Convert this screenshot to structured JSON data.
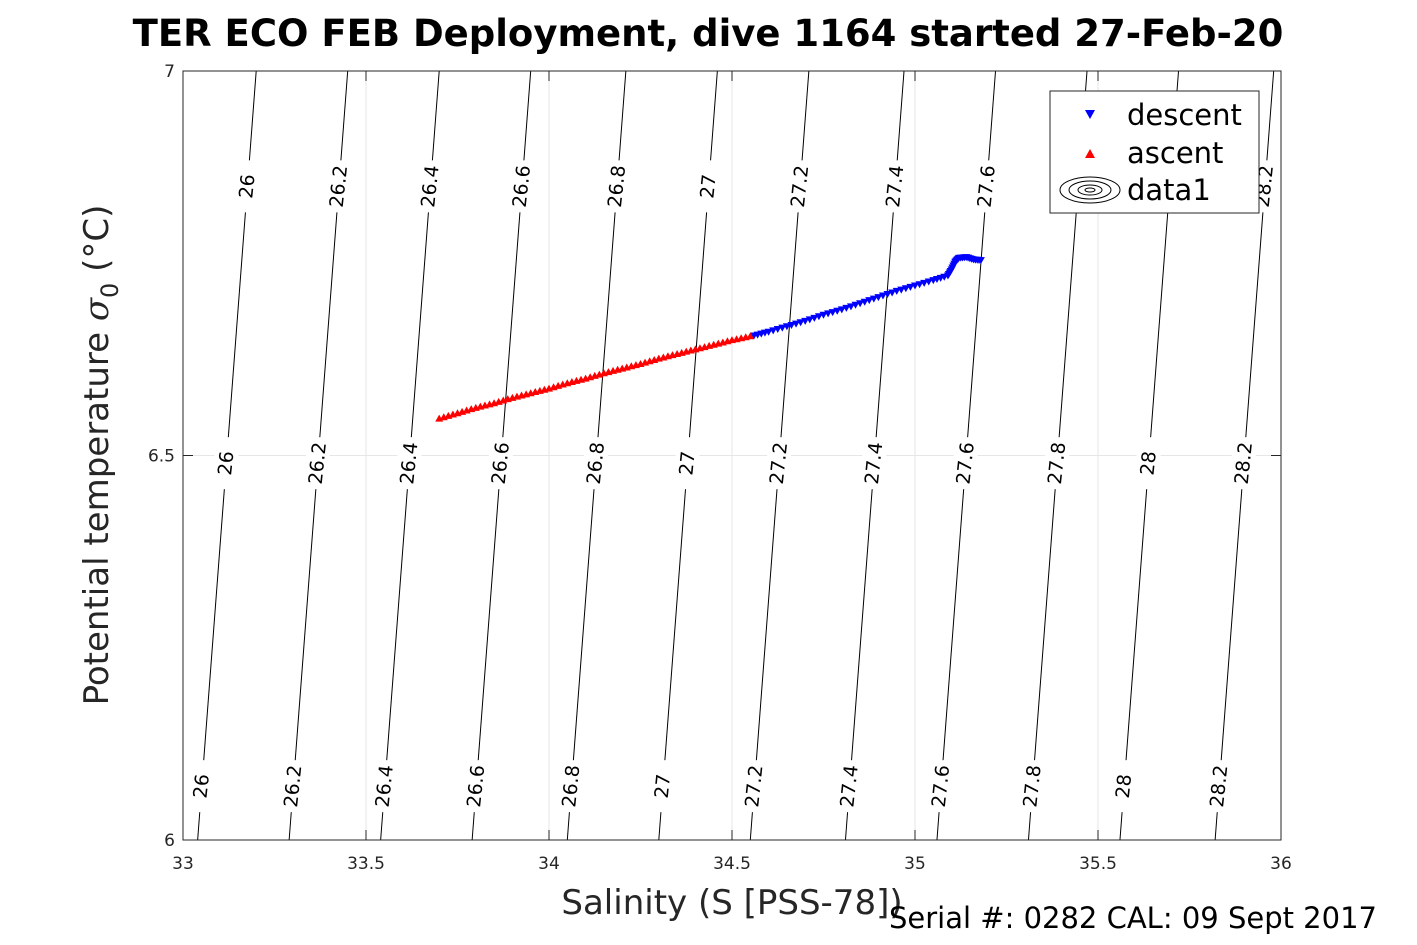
{
  "figure": {
    "title": "TER ECO FEB Deployment, dive 1164 started 27-Feb-20",
    "footnote": "Serial #: 0282  CAL: 09 Sept 2017"
  },
  "chart_data": {
    "type": "scatter",
    "title": "TER ECO FEB Deployment, dive 1164 started 27-Feb-20",
    "xlabel": "Salinity (S [PSS-78])",
    "ylabel_main": "Potential temperature ",
    "ylabel_symbol": "σ",
    "ylabel_sub": "0",
    "ylabel_unit": " (°C)",
    "xlim": [
      33,
      36
    ],
    "ylim": [
      6,
      7
    ],
    "x_ticks": [
      33,
      33.5,
      34,
      34.5,
      35,
      35.5,
      36
    ],
    "x_tick_labels": [
      "33",
      "33.5",
      "34",
      "34.5",
      "35",
      "35.5",
      "36"
    ],
    "y_ticks": [
      6,
      6.5,
      7
    ],
    "y_tick_labels": [
      "6",
      "6.5",
      "7"
    ],
    "grid": true,
    "legend": {
      "position": "top-right",
      "entries": [
        "descent",
        "ascent",
        "data1"
      ]
    },
    "contours": [
      {
        "level": "26",
        "s_bottom": 33.04,
        "s_top": 33.2,
        "label_ts": [
          6.07,
          6.49,
          6.85
        ]
      },
      {
        "level": "26.2",
        "s_bottom": 33.29,
        "s_top": 33.45,
        "label_ts": [
          6.07,
          6.49,
          6.85
        ]
      },
      {
        "level": "26.4",
        "s_bottom": 33.54,
        "s_top": 33.7,
        "label_ts": [
          6.07,
          6.49,
          6.85
        ]
      },
      {
        "level": "26.6",
        "s_bottom": 33.79,
        "s_top": 33.95,
        "label_ts": [
          6.07,
          6.49,
          6.85
        ]
      },
      {
        "level": "26.8",
        "s_bottom": 34.05,
        "s_top": 34.21,
        "label_ts": [
          6.07,
          6.49,
          6.85
        ]
      },
      {
        "level": "27",
        "s_bottom": 34.3,
        "s_top": 34.46,
        "label_ts": [
          6.07,
          6.49,
          6.85
        ]
      },
      {
        "level": "27.2",
        "s_bottom": 34.55,
        "s_top": 34.71,
        "label_ts": [
          6.07,
          6.49,
          6.85
        ]
      },
      {
        "level": "27.4",
        "s_bottom": 34.81,
        "s_top": 34.97,
        "label_ts": [
          6.07,
          6.49,
          6.85
        ]
      },
      {
        "level": "27.6",
        "s_bottom": 35.06,
        "s_top": 35.22,
        "label_ts": [
          6.07,
          6.49,
          6.85
        ]
      },
      {
        "level": "27.8",
        "s_bottom": 35.31,
        "s_top": 35.47,
        "label_ts": [
          6.07,
          6.49
        ]
      },
      {
        "level": "28",
        "s_bottom": 35.56,
        "s_top": 35.72,
        "label_ts": [
          6.07,
          6.49
        ]
      },
      {
        "level": "28.2",
        "s_bottom": 35.82,
        "s_top": 35.98,
        "label_ts": [
          6.07,
          6.49,
          6.85
        ]
      }
    ],
    "series": [
      {
        "name": "descent",
        "color": "#0000ff",
        "marker": "triangle-down",
        "points": [
          [
            34.56,
            6.656
          ],
          [
            34.6,
            6.661
          ],
          [
            34.65,
            6.668
          ],
          [
            34.7,
            6.675
          ],
          [
            34.75,
            6.683
          ],
          [
            34.8,
            6.69
          ],
          [
            34.85,
            6.698
          ],
          [
            34.9,
            6.706
          ],
          [
            34.95,
            6.714
          ],
          [
            35.0,
            6.721
          ],
          [
            35.05,
            6.728
          ],
          [
            35.09,
            6.734
          ],
          [
            35.1,
            6.742
          ],
          [
            35.11,
            6.752
          ],
          [
            35.12,
            6.757
          ],
          [
            35.14,
            6.758
          ],
          [
            35.16,
            6.755
          ],
          [
            35.18,
            6.754
          ]
        ]
      },
      {
        "name": "ascent",
        "color": "#ff0000",
        "marker": "triangle-up",
        "points": [
          [
            33.7,
            6.548
          ],
          [
            33.75,
            6.555
          ],
          [
            33.8,
            6.562
          ],
          [
            33.85,
            6.568
          ],
          [
            33.9,
            6.575
          ],
          [
            33.95,
            6.581
          ],
          [
            34.0,
            6.587
          ],
          [
            34.05,
            6.594
          ],
          [
            34.1,
            6.6
          ],
          [
            34.15,
            6.607
          ],
          [
            34.2,
            6.613
          ],
          [
            34.25,
            6.619
          ],
          [
            34.3,
            6.626
          ],
          [
            34.35,
            6.632
          ],
          [
            34.4,
            6.638
          ],
          [
            34.45,
            6.644
          ],
          [
            34.5,
            6.65
          ],
          [
            34.55,
            6.655
          ]
        ]
      }
    ]
  }
}
